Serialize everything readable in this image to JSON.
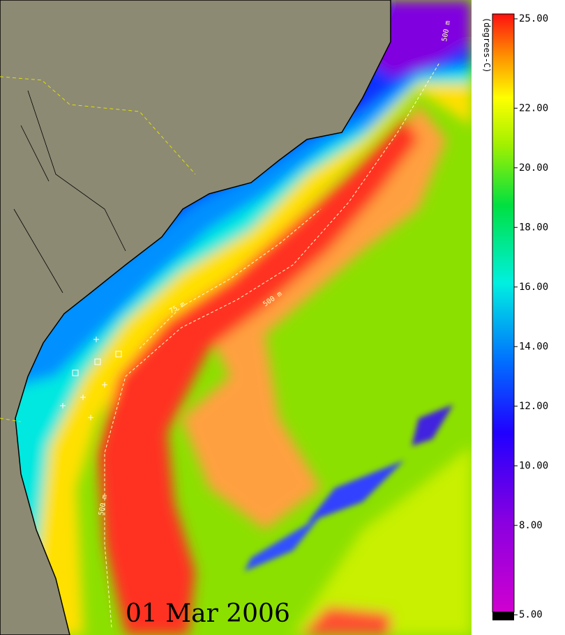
{
  "map": {
    "date_label": "01 Mar 2006",
    "contour_labels": [
      "500 m",
      "500 m",
      "75 m",
      "500 m"
    ],
    "colorbar": {
      "label": "(degrees-C)",
      "range": [
        5,
        25
      ],
      "ticks": [
        {
          "value": 25,
          "label": "25.00"
        },
        {
          "value": 22,
          "label": "22.00"
        },
        {
          "value": 20,
          "label": "20.00"
        },
        {
          "value": 18,
          "label": "18.00"
        },
        {
          "value": 16,
          "label": "16.00"
        },
        {
          "value": 14,
          "label": "14.00"
        },
        {
          "value": 12,
          "label": "12.00"
        },
        {
          "value": 10,
          "label": "10.00"
        },
        {
          "value": 8,
          "label": "8.00"
        },
        {
          "value": 5,
          "label": "5.00"
        }
      ]
    }
  }
}
